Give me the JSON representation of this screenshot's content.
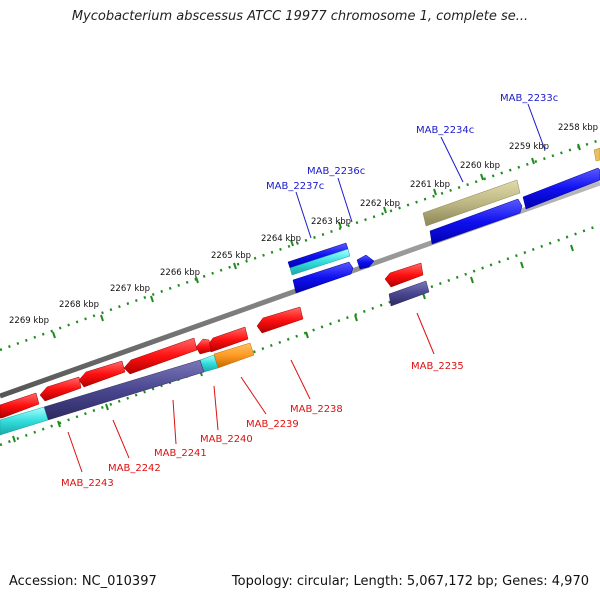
{
  "title": "Mycobacterium abscessus ATCC 19977 chromosome 1, complete se...",
  "footer": {
    "accession": "Accession: NC_010397",
    "summary": "Topology: circular; Length: 5,067,172 bp; Genes: 4,970"
  },
  "scale_labels": [
    "2258 kbp",
    "2259 kbp",
    "2260 kbp",
    "2261 kbp",
    "2262 kbp",
    "2263 kbp",
    "2264 kbp",
    "2265 kbp",
    "2266 kbp",
    "2267 kbp",
    "2268 kbp",
    "2269 kbp"
  ],
  "genes_top": [
    "MAB_2233c",
    "MAB_2234c",
    "MAB_2236c",
    "MAB_2237c"
  ],
  "genes_bottom": [
    "MAB_2235",
    "MAB_2238",
    "MAB_2239",
    "MAB_2240",
    "MAB_2241",
    "MAB_2242",
    "MAB_2243"
  ],
  "colors": {
    "forward_strand": "#1a1aff",
    "reverse_strand": "#ff1a1a",
    "forward_label": "#1a1acc",
    "reverse_label": "#e01010",
    "cyan_feature": "#33dddd",
    "tan_feature": "#bdb784",
    "orange_feature": "#ff9922",
    "slate_feature": "#4a4690",
    "backbone": "#888888",
    "ticks": "#1f8c1f"
  }
}
